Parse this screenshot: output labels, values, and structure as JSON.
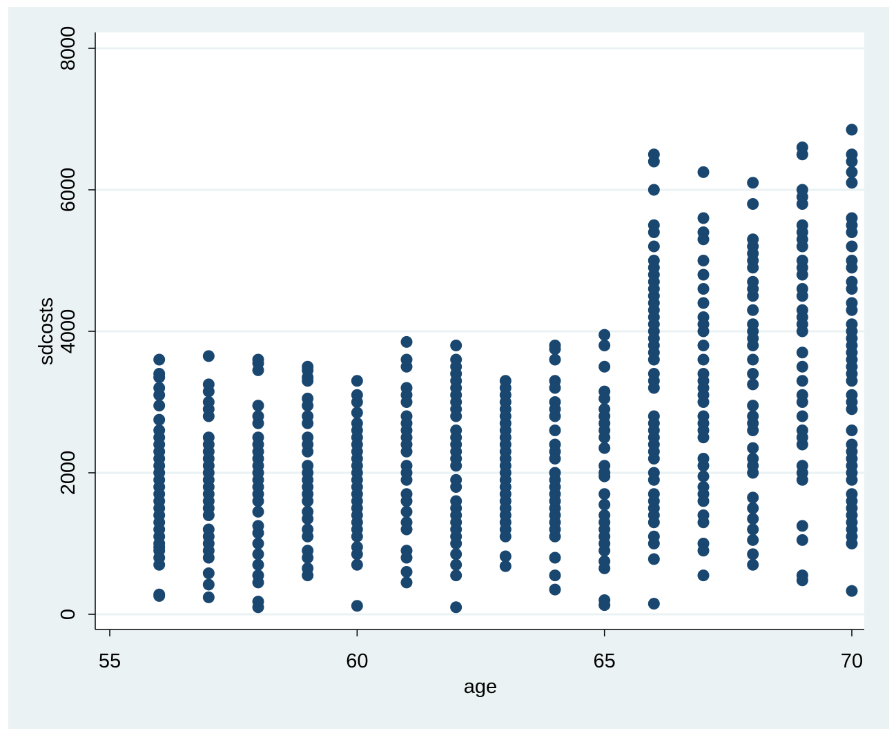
{
  "chart_data": {
    "type": "scatter",
    "title": "",
    "xlabel": "age",
    "ylabel": "sdcosts",
    "xlim": [
      55,
      70
    ],
    "ylim": [
      0,
      8000
    ],
    "x_ticks": [
      "55",
      "60",
      "65",
      "70"
    ],
    "y_ticks": [
      "0",
      "2000",
      "4000",
      "6000",
      "8000"
    ],
    "grid": "horizontal",
    "legend": "none",
    "colors": {
      "marker": "#1a476f",
      "outer_bg": "#eaf2f3",
      "plot_bg": "#ffffff",
      "grid": "#eaf2f3"
    },
    "series": [
      {
        "x": 56,
        "y": [
          260,
          280,
          700,
          800,
          900,
          950,
          1000,
          1100,
          1200,
          1300,
          1400,
          1500,
          1600,
          1700,
          1800,
          1900,
          2000,
          2100,
          2200,
          2300,
          2400,
          2500,
          2600,
          2750,
          2950,
          3100,
          3200,
          3350,
          3400,
          3600
        ]
      },
      {
        "x": 57,
        "y": [
          240,
          420,
          580,
          800,
          900,
          1000,
          1100,
          1200,
          1400,
          1500,
          1600,
          1700,
          1800,
          1900,
          2000,
          2100,
          2200,
          2300,
          2400,
          2500,
          2800,
          2900,
          3000,
          3150,
          3250,
          3650
        ]
      },
      {
        "x": 58,
        "y": [
          100,
          180,
          450,
          550,
          700,
          850,
          1000,
          1150,
          1250,
          1450,
          1600,
          1700,
          1800,
          1900,
          2000,
          2100,
          2200,
          2300,
          2400,
          2500,
          2700,
          2800,
          2950,
          3450,
          3550,
          3600
        ]
      },
      {
        "x": 59,
        "y": [
          550,
          650,
          800,
          900,
          1100,
          1200,
          1350,
          1450,
          1600,
          1700,
          1800,
          1900,
          2000,
          2100,
          2300,
          2400,
          2500,
          2700,
          2800,
          2950,
          3050,
          3300,
          3350,
          3450,
          3500
        ]
      },
      {
        "x": 60,
        "y": [
          120,
          700,
          850,
          950,
          1100,
          1200,
          1300,
          1400,
          1500,
          1600,
          1700,
          1800,
          1900,
          2000,
          2100,
          2200,
          2300,
          2400,
          2500,
          2600,
          2700,
          2850,
          3000,
          3100,
          3300
        ]
      },
      {
        "x": 61,
        "y": [
          450,
          600,
          800,
          900,
          1200,
          1300,
          1450,
          1600,
          1700,
          1900,
          2000,
          2100,
          2300,
          2400,
          2500,
          2600,
          2700,
          2800,
          3000,
          3100,
          3200,
          3500,
          3600,
          3850
        ]
      },
      {
        "x": 62,
        "y": [
          100,
          550,
          700,
          850,
          1000,
          1100,
          1200,
          1300,
          1400,
          1500,
          1600,
          1800,
          1900,
          2100,
          2200,
          2300,
          2400,
          2500,
          2600,
          2800,
          2900,
          3000,
          3100,
          3200,
          3300,
          3400,
          3500,
          3600,
          3800
        ]
      },
      {
        "x": 63,
        "y": [
          680,
          820,
          1100,
          1200,
          1300,
          1400,
          1500,
          1600,
          1700,
          1800,
          1900,
          2000,
          2100,
          2200,
          2300,
          2400,
          2500,
          2600,
          2700,
          2800,
          2900,
          3000,
          3100,
          3200,
          3300
        ]
      },
      {
        "x": 64,
        "y": [
          350,
          550,
          800,
          1100,
          1200,
          1300,
          1400,
          1500,
          1600,
          1700,
          1800,
          1900,
          2000,
          2200,
          2300,
          2400,
          2600,
          2800,
          2900,
          3000,
          3200,
          3300,
          3600,
          3750,
          3800
        ]
      },
      {
        "x": 65,
        "y": [
          130,
          200,
          650,
          750,
          900,
          1000,
          1100,
          1200,
          1300,
          1400,
          1550,
          1700,
          1950,
          2000,
          2100,
          2350,
          2500,
          2600,
          2700,
          2800,
          2900,
          3050,
          3150,
          3500,
          3800,
          3950
        ]
      },
      {
        "x": 66,
        "y": [
          150,
          780,
          1000,
          1100,
          1300,
          1400,
          1500,
          1600,
          1700,
          1900,
          2000,
          2200,
          2300,
          2400,
          2500,
          2600,
          2700,
          2800,
          3200,
          3300,
          3400,
          3600,
          3700,
          3800,
          3900,
          4000,
          4100,
          4200,
          4300,
          4400,
          4500,
          4600,
          4700,
          4800,
          4900,
          5000,
          5200,
          5400,
          5500,
          6000,
          6400,
          6500
        ]
      },
      {
        "x": 67,
        "y": [
          550,
          900,
          1000,
          1300,
          1400,
          1600,
          1700,
          1800,
          1950,
          2100,
          2200,
          2500,
          2600,
          2700,
          2800,
          3000,
          3100,
          3200,
          3300,
          3400,
          3600,
          3800,
          4000,
          4100,
          4200,
          4400,
          4600,
          4800,
          5000,
          5300,
          5400,
          5600,
          6250
        ]
      },
      {
        "x": 68,
        "y": [
          700,
          850,
          1050,
          1200,
          1350,
          1500,
          1650,
          2000,
          2100,
          2200,
          2350,
          2600,
          2700,
          2800,
          2950,
          3250,
          3400,
          3600,
          3800,
          3900,
          4000,
          4100,
          4300,
          4500,
          4600,
          4700,
          4900,
          5000,
          5100,
          5200,
          5300,
          5800,
          6100
        ]
      },
      {
        "x": 69,
        "y": [
          480,
          550,
          1050,
          1250,
          1900,
          2000,
          2100,
          2400,
          2500,
          2600,
          2800,
          3000,
          3100,
          3300,
          3500,
          3700,
          4000,
          4100,
          4200,
          4300,
          4500,
          4600,
          4800,
          4900,
          5000,
          5200,
          5300,
          5400,
          5500,
          5800,
          5900,
          6000,
          6500,
          6600
        ]
      },
      {
        "x": 70,
        "y": [
          330,
          1000,
          1100,
          1200,
          1300,
          1400,
          1500,
          1600,
          1700,
          1900,
          2000,
          2100,
          2200,
          2300,
          2400,
          2600,
          2900,
          3000,
          3100,
          3300,
          3400,
          3500,
          3600,
          3700,
          3800,
          3900,
          4000,
          4100,
          4300,
          4400,
          4600,
          4700,
          4900,
          5000,
          5200,
          5400,
          5500,
          5600,
          6100,
          6250,
          6400,
          6500,
          6850
        ]
      }
    ]
  }
}
